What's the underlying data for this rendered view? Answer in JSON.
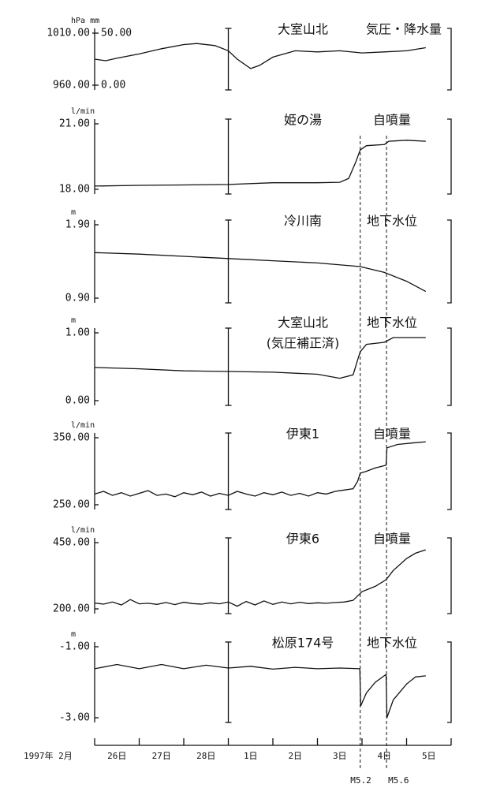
{
  "x_axis": {
    "xlim": [
      0,
      8
    ],
    "xticks": [
      0,
      1,
      2,
      3,
      4,
      5,
      6,
      7,
      8
    ],
    "tick_labels": [
      {
        "value": 0.5,
        "label": "26日"
      },
      {
        "value": 1.5,
        "label": "27日"
      },
      {
        "value": 2.5,
        "label": "28日"
      },
      {
        "value": 3.5,
        "label": "1日"
      },
      {
        "value": 4.5,
        "label": "2日"
      },
      {
        "value": 5.5,
        "label": "3日"
      },
      {
        "value": 6.5,
        "label": "4日"
      },
      {
        "value": 7.5,
        "label": "5日"
      }
    ],
    "unit_label": "1997年 2月"
  },
  "events": [
    {
      "x": 5.96,
      "label": "M5.2"
    },
    {
      "x": 6.55,
      "label": "M5.6"
    }
  ],
  "chart_data": [
    {
      "type": "line",
      "title": "大室山北",
      "subtitle": "気圧・降水量",
      "y_unit": "hPa mm",
      "ylim": [
        960,
        1010
      ],
      "yticks": [
        {
          "value": 960,
          "label": "960.00"
        },
        {
          "value": 1010,
          "label": "1010.00"
        }
      ],
      "y2lim": [
        0,
        50
      ],
      "y2ticks": [
        {
          "value": 0,
          "label": "0.00"
        },
        {
          "value": 50,
          "label": "50.00"
        }
      ],
      "series": [
        {
          "color": "#111",
          "x": [
            0,
            0.25,
            0.5,
            1,
            1.5,
            2,
            2.3,
            2.7,
            3,
            3.2,
            3.5,
            3.7,
            4,
            4.5,
            5,
            5.5,
            6,
            6.5,
            7,
            7.43
          ],
          "values": [
            985,
            983.5,
            986,
            990,
            995,
            999,
            1000,
            998,
            993,
            985,
            976,
            979,
            987,
            993,
            992,
            993,
            991,
            992,
            993,
            996
          ]
        }
      ]
    },
    {
      "type": "line",
      "title": "姫の湯",
      "subtitle": "自噴量",
      "y_unit": "l/min",
      "ylim": [
        18,
        21
      ],
      "yticks": [
        {
          "value": 18,
          "label": "18.00"
        },
        {
          "value": 21,
          "label": "21.00"
        }
      ],
      "series": [
        {
          "color": "#111",
          "x": [
            0,
            1,
            2,
            3,
            4,
            5,
            5.5,
            5.7,
            5.85,
            5.96,
            6.1,
            6.5,
            6.6,
            7,
            7.43
          ],
          "values": [
            18.15,
            18.18,
            18.2,
            18.22,
            18.3,
            18.3,
            18.32,
            18.5,
            19.2,
            19.8,
            20.0,
            20.05,
            20.2,
            20.25,
            20.2
          ]
        }
      ]
    },
    {
      "type": "line",
      "title": "冷川南",
      "subtitle": "地下水位",
      "y_unit": "m",
      "ylim": [
        0.9,
        1.9
      ],
      "yticks": [
        {
          "value": 0.9,
          "label": "0.90"
        },
        {
          "value": 1.9,
          "label": "1.90"
        }
      ],
      "series": [
        {
          "color": "#111",
          "x": [
            0,
            1,
            2,
            3,
            4,
            5,
            5.96,
            6.5,
            7,
            7.43
          ],
          "values": [
            1.52,
            1.5,
            1.47,
            1.44,
            1.41,
            1.38,
            1.33,
            1.25,
            1.13,
            0.99
          ]
        }
      ]
    },
    {
      "type": "line",
      "title": "大室山北",
      "note": "(気圧補正済)",
      "subtitle": "地下水位",
      "y_unit": "m",
      "ylim": [
        0,
        1
      ],
      "yticks": [
        {
          "value": 0,
          "label": "0.00"
        },
        {
          "value": 1,
          "label": "1.00"
        }
      ],
      "series": [
        {
          "color": "#111",
          "x": [
            0,
            1,
            2,
            3,
            4,
            5,
            5.5,
            5.8,
            5.9,
            5.96,
            6.1,
            6.5,
            6.7,
            7.43
          ],
          "values": [
            0.49,
            0.47,
            0.44,
            0.43,
            0.42,
            0.39,
            0.33,
            0.38,
            0.6,
            0.72,
            0.83,
            0.86,
            0.93,
            0.93
          ]
        }
      ]
    },
    {
      "type": "line",
      "title": "伊東1",
      "subtitle": "自噴量",
      "y_unit": "l/min",
      "ylim": [
        250,
        350
      ],
      "yticks": [
        {
          "value": 250,
          "label": "250.00"
        },
        {
          "value": 350,
          "label": "350.00"
        }
      ],
      "series": [
        {
          "color": "#111",
          "x": [
            0,
            0.2,
            0.4,
            0.6,
            0.8,
            1,
            1.2,
            1.4,
            1.6,
            1.8,
            2,
            2.2,
            2.4,
            2.6,
            2.8,
            3,
            3.2,
            3.4,
            3.6,
            3.8,
            4,
            4.2,
            4.4,
            4.6,
            4.8,
            5,
            5.2,
            5.4,
            5.6,
            5.8,
            5.9,
            5.96,
            6.1,
            6.3,
            6.54,
            6.56,
            6.8,
            7.1,
            7.43
          ],
          "values": [
            266,
            270,
            264,
            268,
            263,
            267,
            271,
            264,
            266,
            262,
            268,
            265,
            269,
            263,
            267,
            264,
            270,
            266,
            263,
            268,
            265,
            269,
            264,
            267,
            263,
            268,
            266,
            270,
            272,
            274,
            285,
            297,
            300,
            305,
            309,
            335,
            340,
            342,
            344
          ]
        }
      ]
    },
    {
      "type": "line",
      "title": "伊東6",
      "subtitle": "自噴量",
      "y_unit": "l/min",
      "ylim": [
        200,
        450
      ],
      "yticks": [
        {
          "value": 200,
          "label": "200.00"
        },
        {
          "value": 450,
          "label": "450.00"
        }
      ],
      "series": [
        {
          "color": "#111",
          "x": [
            0,
            0.2,
            0.4,
            0.6,
            0.8,
            1,
            1.2,
            1.4,
            1.6,
            1.8,
            2,
            2.2,
            2.4,
            2.6,
            2.8,
            3,
            3.2,
            3.4,
            3.6,
            3.8,
            4,
            4.2,
            4.4,
            4.6,
            4.8,
            5,
            5.2,
            5.4,
            5.6,
            5.8,
            6,
            6.3,
            6.54,
            6.7,
            7,
            7.2,
            7.43
          ],
          "values": [
            222,
            218,
            226,
            215,
            235,
            219,
            221,
            217,
            224,
            216,
            225,
            220,
            218,
            223,
            219,
            226,
            210,
            228,
            215,
            230,
            217,
            226,
            219,
            225,
            220,
            223,
            221,
            224,
            226,
            232,
            265,
            285,
            310,
            345,
            390,
            410,
            423
          ]
        }
      ]
    },
    {
      "type": "line",
      "title": "松原174号",
      "subtitle": "地下水位",
      "y_unit": "m",
      "ylim": [
        -3,
        -1
      ],
      "yticks": [
        {
          "value": -3,
          "label": "-3.00"
        },
        {
          "value": -1,
          "label": "-1.00"
        }
      ],
      "series": [
        {
          "color": "#111",
          "x": [
            0,
            0.5,
            1,
            1.5,
            2,
            2.5,
            3,
            3.5,
            4,
            4.5,
            5,
            5.5,
            5.95,
            5.97,
            6.1,
            6.3,
            6.54,
            6.56,
            6.7,
            7,
            7.2,
            7.43
          ],
          "values": [
            -1.62,
            -1.5,
            -1.62,
            -1.5,
            -1.62,
            -1.52,
            -1.6,
            -1.55,
            -1.63,
            -1.58,
            -1.62,
            -1.6,
            -1.62,
            -2.67,
            -2.3,
            -2.0,
            -1.78,
            -3.0,
            -2.5,
            -2.05,
            -1.85,
            -1.82
          ]
        }
      ]
    }
  ]
}
